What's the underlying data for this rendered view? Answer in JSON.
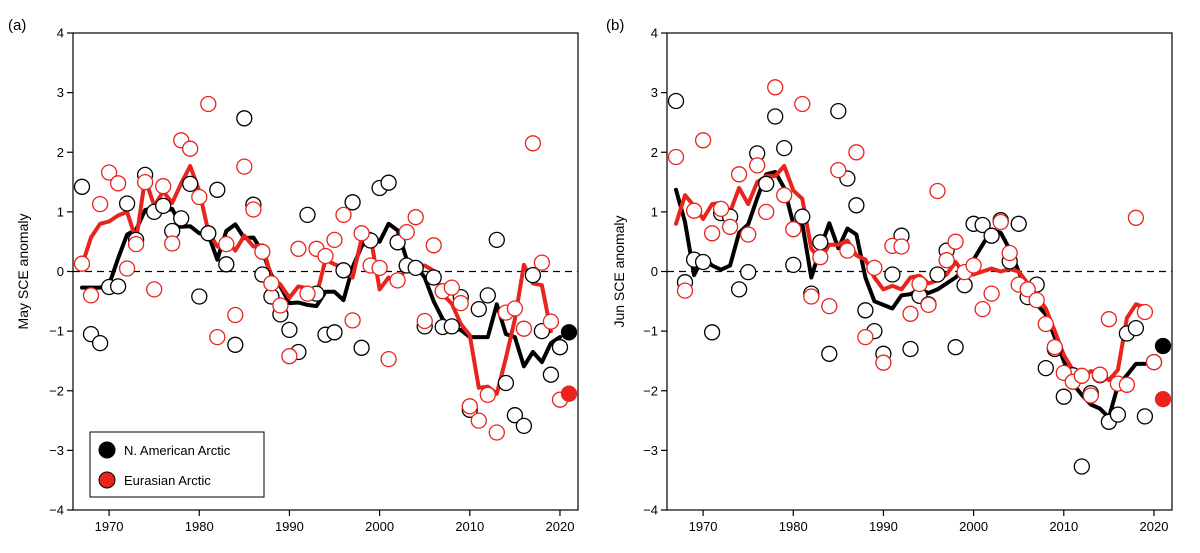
{
  "colors": {
    "north_america": "#000000",
    "eurasia": "#e8241d"
  },
  "legend": {
    "north_america": "N. American Arctic",
    "eurasia": "Eurasian Arctic"
  },
  "chart_data": [
    {
      "type": "line",
      "panel_label": "(a)",
      "ylabel": "May SCE anomaly",
      "xlim": [
        1966,
        2022
      ],
      "ylim": [
        -4,
        4
      ],
      "xticks": [
        1970,
        1980,
        1990,
        2000,
        2010,
        2020
      ],
      "yticks": [
        -4,
        -3,
        -2,
        -1,
        0,
        1,
        2,
        3,
        4
      ],
      "zero_line": "dashed",
      "legend_position": "bottom-left",
      "series": [
        {
          "name": "N. American Arctic",
          "key": "north_america",
          "x": [
            1967,
            1968,
            1969,
            1970,
            1971,
            1972,
            1973,
            1974,
            1975,
            1976,
            1977,
            1978,
            1979,
            1980,
            1981,
            1982,
            1983,
            1984,
            1985,
            1986,
            1987,
            1988,
            1989,
            1990,
            1991,
            1992,
            1993,
            1994,
            1995,
            1996,
            1997,
            1998,
            1999,
            2000,
            2001,
            2002,
            2003,
            2004,
            2005,
            2006,
            2007,
            2008,
            2009,
            2010,
            2011,
            2012,
            2013,
            2014,
            2015,
            2016,
            2017,
            2018,
            2019,
            2020,
            2021
          ],
          "values": [
            1.42,
            -1.05,
            -1.2,
            -0.26,
            -0.25,
            1.14,
            0.53,
            1.62,
            1.0,
            1.1,
            0.68,
            0.89,
            1.47,
            -0.42,
            0.64,
            1.37,
            0.12,
            -1.23,
            2.57,
            1.12,
            -0.05,
            -0.42,
            -0.72,
            -0.98,
            -1.35,
            0.95,
            -0.37,
            -1.06,
            -1.02,
            0.02,
            1.16,
            -1.28,
            0.52,
            1.4,
            1.49,
            0.49,
            0.1,
            0.06,
            -0.92,
            -0.1,
            -0.93,
            -0.92,
            -0.43,
            -2.32,
            -0.63,
            -0.4,
            0.53,
            -1.87,
            -2.41,
            -2.59,
            -0.06,
            -1.0,
            -1.73,
            -1.27,
            -1.02
          ],
          "smooth_x": [
            1967,
            1969,
            1970,
            1971,
            1972,
            1973,
            1974,
            1975,
            1976,
            1977,
            1978,
            1979,
            1980,
            1981,
            1982,
            1983,
            1984,
            1985,
            1986,
            1987,
            1988,
            1989,
            1990,
            1991,
            1992,
            1993,
            1994,
            1995,
            1996,
            1997,
            1998,
            1999,
            2000,
            2001,
            2002,
            2003,
            2004,
            2005,
            2006,
            2007,
            2008,
            2009,
            2010,
            2011,
            2012,
            2013,
            2014,
            2015,
            2016,
            2017,
            2018,
            2019,
            2020
          ],
          "smooth": [
            -0.27,
            -0.27,
            -0.22,
            0.22,
            0.62,
            0.7,
            1.03,
            1.07,
            1.02,
            1.05,
            0.75,
            0.76,
            0.64,
            0.62,
            0.2,
            0.68,
            0.79,
            0.56,
            0.57,
            0.33,
            -0.06,
            -0.25,
            -0.53,
            -0.52,
            -0.56,
            -0.58,
            -0.34,
            -0.34,
            -0.48,
            0.07,
            0.42,
            0.63,
            0.5,
            0.8,
            0.69,
            0.2,
            0.1,
            -0.1,
            -0.5,
            -0.8,
            -0.95,
            -0.98,
            -1.1,
            -1.1,
            -1.1,
            -0.55,
            -1.05,
            -1.1,
            -1.59,
            -1.35,
            -1.52,
            -1.2,
            -1.1
          ]
        },
        {
          "name": "Eurasian Arctic",
          "key": "eurasia",
          "x": [
            1967,
            1968,
            1969,
            1970,
            1971,
            1972,
            1973,
            1974,
            1975,
            1976,
            1977,
            1978,
            1979,
            1980,
            1981,
            1982,
            1983,
            1984,
            1985,
            1986,
            1987,
            1988,
            1989,
            1990,
            1991,
            1992,
            1993,
            1994,
            1995,
            1996,
            1997,
            1998,
            1999,
            2000,
            2001,
            2002,
            2003,
            2004,
            2005,
            2006,
            2007,
            2008,
            2009,
            2010,
            2011,
            2012,
            2013,
            2014,
            2015,
            2016,
            2017,
            2018,
            2019,
            2020,
            2021
          ],
          "values": [
            0.13,
            -0.4,
            1.13,
            1.66,
            1.48,
            0.05,
            0.46,
            1.5,
            -0.3,
            1.43,
            0.47,
            2.2,
            2.06,
            1.25,
            2.81,
            -1.1,
            0.46,
            -0.73,
            1.76,
            1.04,
            0.33,
            -0.2,
            -0.57,
            -1.42,
            0.38,
            -0.37,
            0.38,
            0.26,
            0.53,
            0.95,
            -0.82,
            0.64,
            0.1,
            0.06,
            -1.47,
            -0.15,
            0.66,
            0.91,
            -0.83,
            0.44,
            -0.33,
            -0.27,
            -0.53,
            -2.26,
            -2.5,
            -2.07,
            -2.7,
            -0.69,
            -0.62,
            -0.96,
            2.15,
            0.15,
            -0.84,
            -2.15,
            -2.05
          ],
          "smooth_x": [
            1967,
            1968,
            1969,
            1970,
            1971,
            1972,
            1973,
            1974,
            1975,
            1976,
            1977,
            1978,
            1979,
            1980,
            1981,
            1982,
            1983,
            1984,
            1985,
            1986,
            1987,
            1988,
            1989,
            1990,
            1991,
            1992,
            1993,
            1994,
            1995,
            1996,
            1997,
            1998,
            1999,
            2000,
            2001,
            2002,
            2003,
            2004,
            2005,
            2006,
            2007,
            2008,
            2009,
            2010,
            2011,
            2012,
            2013,
            2014,
            2015,
            2016,
            2017,
            2018,
            2019,
            2020
          ],
          "smooth": [
            0.1,
            0.57,
            0.8,
            0.84,
            0.94,
            1.0,
            0.53,
            1.56,
            1.1,
            1.34,
            1.15,
            1.48,
            1.77,
            1.35,
            0.67,
            0.42,
            0.53,
            0.35,
            0.6,
            0.42,
            0.44,
            -0.1,
            -0.22,
            -0.44,
            -0.25,
            -0.28,
            -0.4,
            0.2,
            0.12,
            0.06,
            -0.1,
            0.55,
            0.58,
            -0.3,
            -0.1,
            -0.2,
            0.1,
            0.1,
            0.1,
            0.01,
            -0.38,
            -0.54,
            -0.88,
            -1.07,
            -1.95,
            -1.93,
            -2.05,
            -1.45,
            -0.8,
            0.11,
            -0.2,
            -0.23,
            -1.0
          ]
        }
      ]
    },
    {
      "type": "line",
      "panel_label": "(b)",
      "ylabel": "Jun SCE anomaly",
      "xlim": [
        1966,
        2022
      ],
      "ylim": [
        -4,
        4
      ],
      "xticks": [
        1970,
        1980,
        1990,
        2000,
        2010,
        2020
      ],
      "yticks": [
        -4,
        -3,
        -2,
        -1,
        0,
        1,
        2,
        3,
        4
      ],
      "zero_line": "dashed",
      "series": [
        {
          "name": "N. American Arctic",
          "key": "north_america",
          "x": [
            1967,
            1968,
            1969,
            1970,
            1971,
            1972,
            1973,
            1974,
            1975,
            1976,
            1977,
            1978,
            1979,
            1980,
            1981,
            1982,
            1983,
            1984,
            1985,
            1986,
            1987,
            1988,
            1989,
            1990,
            1991,
            1992,
            1993,
            1994,
            1995,
            1996,
            1997,
            1998,
            1999,
            2000,
            2001,
            2002,
            2003,
            2004,
            2005,
            2006,
            2007,
            2008,
            2009,
            2010,
            2011,
            2012,
            2013,
            2014,
            2015,
            2016,
            2017,
            2018,
            2019,
            2020,
            2021
          ],
          "values": [
            2.86,
            -0.18,
            0.2,
            0.16,
            -1.02,
            0.98,
            0.92,
            -0.3,
            -0.01,
            1.98,
            1.47,
            2.6,
            2.07,
            0.11,
            0.92,
            -0.37,
            0.49,
            -1.38,
            2.69,
            1.56,
            1.11,
            -0.65,
            -1.0,
            -1.38,
            -0.05,
            0.6,
            -1.3,
            -0.41,
            -0.55,
            -0.05,
            0.35,
            -1.27,
            -0.23,
            0.8,
            0.78,
            0.6,
            0.86,
            0.17,
            0.8,
            -0.43,
            -0.22,
            -1.62,
            -1.3,
            -2.1,
            -1.74,
            -3.27,
            -2.04,
            -1.74,
            -2.52,
            -2.4,
            -1.04,
            -0.95,
            -2.43,
            -1.52,
            -1.25
          ],
          "smooth_x": [
            1967,
            1968,
            1969,
            1970,
            1971,
            1972,
            1973,
            1974,
            1975,
            1976,
            1977,
            1978,
            1979,
            1980,
            1981,
            1982,
            1983,
            1984,
            1985,
            1986,
            1987,
            1988,
            1989,
            1990,
            1991,
            1992,
            1993,
            1994,
            1995,
            1996,
            1997,
            1998,
            1999,
            2000,
            2001,
            2002,
            2003,
            2004,
            2005,
            2006,
            2007,
            2008,
            2009,
            2010,
            2011,
            2012,
            2013,
            2014,
            2015,
            2016,
            2017,
            2018,
            2019,
            2020
          ],
          "smooth": [
            1.37,
            0.83,
            -0.06,
            0.25,
            0.1,
            0.03,
            0.1,
            0.65,
            0.79,
            1.23,
            1.63,
            1.67,
            1.4,
            0.8,
            0.8,
            -0.1,
            0.39,
            0.81,
            0.39,
            0.72,
            0.62,
            -0.1,
            -0.5,
            -0.56,
            -0.62,
            -0.4,
            -0.38,
            -0.3,
            -0.36,
            -0.3,
            -0.2,
            -0.1,
            0.05,
            0.2,
            0.45,
            0.69,
            0.65,
            0.37,
            0.0,
            -0.37,
            -0.55,
            -0.72,
            -1.1,
            -1.5,
            -1.88,
            -2.07,
            -2.23,
            -2.3,
            -2.45,
            -1.91,
            -1.74,
            -1.55,
            -1.55
          ]
        },
        {
          "name": "Eurasian Arctic",
          "key": "eurasia",
          "x": [
            1967,
            1968,
            1969,
            1970,
            1971,
            1972,
            1973,
            1974,
            1975,
            1976,
            1977,
            1978,
            1979,
            1980,
            1981,
            1982,
            1983,
            1984,
            1985,
            1986,
            1987,
            1988,
            1989,
            1990,
            1991,
            1992,
            1993,
            1994,
            1995,
            1996,
            1997,
            1998,
            1999,
            2000,
            2001,
            2002,
            2003,
            2004,
            2005,
            2006,
            2007,
            2008,
            2009,
            2010,
            2011,
            2012,
            2013,
            2014,
            2015,
            2016,
            2017,
            2018,
            2019,
            2020,
            2021
          ],
          "values": [
            1.92,
            -0.32,
            1.02,
            2.2,
            0.64,
            1.05,
            0.75,
            1.63,
            0.62,
            1.78,
            1.0,
            3.09,
            1.28,
            0.71,
            2.81,
            -0.42,
            0.24,
            -0.58,
            1.7,
            0.35,
            2.0,
            -1.1,
            0.06,
            -1.53,
            0.43,
            0.42,
            -0.71,
            -0.21,
            -0.56,
            1.35,
            0.19,
            0.5,
            -0.01,
            0.1,
            -0.63,
            -0.37,
            0.83,
            0.31,
            -0.22,
            -0.3,
            -0.48,
            -0.88,
            -1.27,
            -1.7,
            -1.85,
            -1.75,
            -2.08,
            -1.73,
            -0.8,
            -1.88,
            -1.9,
            0.9,
            -0.68,
            -1.52,
            -2.14
          ],
          "smooth_x": [
            1967,
            1968,
            1969,
            1970,
            1971,
            1972,
            1973,
            1974,
            1975,
            1976,
            1977,
            1978,
            1979,
            1980,
            1981,
            1982,
            1983,
            1984,
            1985,
            1986,
            1987,
            1988,
            1989,
            1990,
            1991,
            1992,
            1993,
            1994,
            1995,
            1996,
            1997,
            1998,
            1999,
            2000,
            2001,
            2002,
            2003,
            2004,
            2005,
            2006,
            2007,
            2008,
            2009,
            2010,
            2011,
            2012,
            2013,
            2014,
            2015,
            2016,
            2017,
            2018,
            2019,
            2020
          ],
          "smooth": [
            0.8,
            1.28,
            1.1,
            0.88,
            1.13,
            1.15,
            1.0,
            1.4,
            1.13,
            1.5,
            1.6,
            1.6,
            1.77,
            1.36,
            1.22,
            0.38,
            0.2,
            0.45,
            0.45,
            0.52,
            0.27,
            0.2,
            -0.1,
            -0.3,
            -0.24,
            -0.3,
            -0.1,
            -0.07,
            -0.2,
            -0.15,
            -0.05,
            0.16,
            -0.05,
            -0.05,
            0.0,
            0.05,
            0.0,
            0.04,
            0.0,
            -0.2,
            -0.41,
            -0.62,
            -1.0,
            -1.4,
            -1.65,
            -1.81,
            -1.67,
            -1.7,
            -1.82,
            -1.65,
            -0.78,
            -0.55,
            -0.6
          ]
        }
      ]
    }
  ]
}
